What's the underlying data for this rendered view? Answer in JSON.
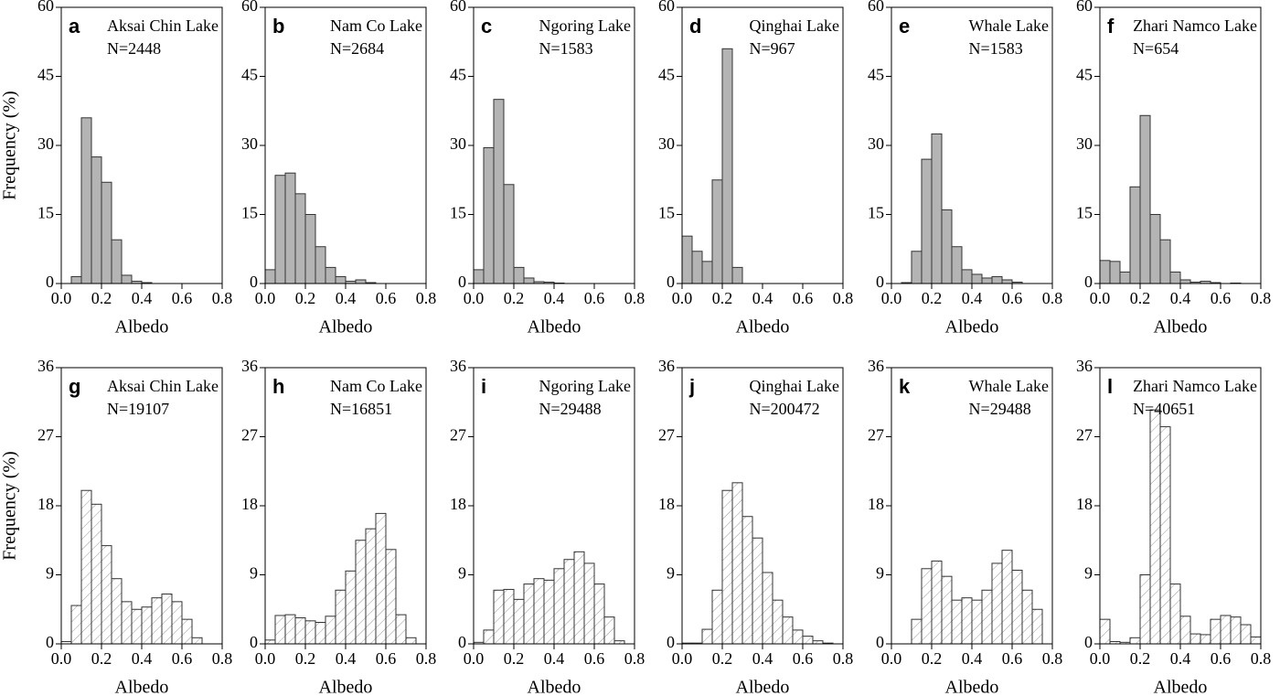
{
  "chart_data": [
    {
      "type": "histogram",
      "panel_label": "a",
      "title": "Aksai Chin Lake",
      "annotation": "N=2448",
      "xlabel": "Albedo",
      "ylabel": "Frequency (%)",
      "bins": [
        0,
        0.05,
        0.1,
        0.15,
        0.2,
        0.25,
        0.3,
        0.35,
        0.4,
        0.45,
        0.5,
        0.55,
        0.6,
        0.65,
        0.7,
        0.75,
        0.8
      ],
      "values": [
        0,
        1.5,
        36,
        27.5,
        22,
        9.5,
        1.8,
        0.5,
        0.2,
        0,
        0,
        0,
        0,
        0,
        0,
        0
      ],
      "color": "#b4b4b4",
      "hatch": false,
      "xlim": [
        0,
        0.8
      ],
      "ylim": [
        0,
        60
      ],
      "xticks": [
        {
          "value": 0,
          "label": "0.0"
        },
        0.2,
        0.4,
        0.6,
        0.8
      ],
      "yticks": [
        0,
        15,
        30,
        45,
        60
      ]
    },
    {
      "type": "histogram",
      "panel_label": "b",
      "title": "Nam Co Lake",
      "annotation": "N=2684",
      "xlabel": "Albedo",
      "bins": [
        0,
        0.05,
        0.1,
        0.15,
        0.2,
        0.25,
        0.3,
        0.35,
        0.4,
        0.45,
        0.5,
        0.55,
        0.6,
        0.65,
        0.7,
        0.75,
        0.8
      ],
      "values": [
        3,
        23.5,
        24,
        19.5,
        15,
        8,
        3.5,
        1.5,
        0.5,
        0.8,
        0.2,
        0,
        0,
        0,
        0,
        0
      ],
      "color": "#b4b4b4",
      "hatch": false,
      "xlim": [
        0,
        0.8
      ],
      "ylim": [
        0,
        60
      ],
      "xticks": [
        {
          "value": 0,
          "label": "0.0"
        },
        0.2,
        0.4,
        0.6,
        0.8
      ],
      "yticks": [
        0,
        15,
        30,
        45,
        60
      ]
    },
    {
      "type": "histogram",
      "panel_label": "c",
      "title": "Ngoring Lake",
      "annotation": "N=1583",
      "xlabel": "Albedo",
      "bins": [
        0,
        0.05,
        0.1,
        0.15,
        0.2,
        0.25,
        0.3,
        0.35,
        0.4,
        0.45,
        0.5,
        0.55,
        0.6,
        0.65,
        0.7,
        0.75,
        0.8
      ],
      "values": [
        3,
        29.5,
        40,
        21.5,
        3.5,
        1.2,
        0.4,
        0.3,
        0.1,
        0,
        0,
        0,
        0,
        0,
        0,
        0
      ],
      "color": "#b4b4b4",
      "hatch": false,
      "xlim": [
        0,
        0.8
      ],
      "ylim": [
        0,
        60
      ],
      "xticks": [
        {
          "value": 0,
          "label": "0.0"
        },
        0.2,
        0.4,
        0.6,
        0.8
      ],
      "yticks": [
        0,
        15,
        30,
        45,
        60
      ]
    },
    {
      "type": "histogram",
      "panel_label": "d",
      "title": "Qinghai Lake",
      "annotation": "N=967",
      "xlabel": "Albedo",
      "bins": [
        0,
        0.05,
        0.1,
        0.15,
        0.2,
        0.25,
        0.3,
        0.35,
        0.4,
        0.45,
        0.5,
        0.55,
        0.6,
        0.65,
        0.7,
        0.75,
        0.8
      ],
      "values": [
        10.3,
        7,
        4.8,
        22.5,
        51,
        3.5,
        0,
        0,
        0,
        0,
        0,
        0,
        0,
        0,
        0,
        0
      ],
      "color": "#b4b4b4",
      "hatch": false,
      "xlim": [
        0,
        0.8
      ],
      "ylim": [
        0,
        60
      ],
      "xticks": [
        {
          "value": 0,
          "label": "0.0"
        },
        0.2,
        0.4,
        0.6,
        0.8
      ],
      "yticks": [
        0,
        15,
        30,
        45,
        60
      ]
    },
    {
      "type": "histogram",
      "panel_label": "e",
      "title": "Whale Lake",
      "annotation": "N=1583",
      "xlabel": "Albedo",
      "bins": [
        0,
        0.05,
        0.1,
        0.15,
        0.2,
        0.25,
        0.3,
        0.35,
        0.4,
        0.45,
        0.5,
        0.55,
        0.6,
        0.65,
        0.7,
        0.75,
        0.8
      ],
      "values": [
        0,
        0.2,
        7,
        27,
        32.5,
        16,
        8,
        3,
        2,
        1.2,
        1.5,
        0.8,
        0.3,
        0,
        0,
        0
      ],
      "color": "#b4b4b4",
      "hatch": false,
      "xlim": [
        0,
        0.8
      ],
      "ylim": [
        0,
        60
      ],
      "xticks": [
        {
          "value": 0,
          "label": "0.0"
        },
        0.2,
        0.4,
        0.6,
        0.8
      ],
      "yticks": [
        0,
        15,
        30,
        45,
        60
      ]
    },
    {
      "type": "histogram",
      "panel_label": "f",
      "title": "Zhari Namco Lake",
      "annotation": "N=654",
      "xlabel": "Albedo",
      "bins": [
        0,
        0.05,
        0.1,
        0.15,
        0.2,
        0.25,
        0.3,
        0.35,
        0.4,
        0.45,
        0.5,
        0.55,
        0.6,
        0.65,
        0.7,
        0.75,
        0.8
      ],
      "values": [
        5,
        4.8,
        2.5,
        21,
        36.5,
        15,
        9.5,
        2.5,
        0.8,
        0.3,
        0.5,
        0.2,
        0,
        0.1,
        0,
        0
      ],
      "color": "#b4b4b4",
      "hatch": false,
      "xlim": [
        0,
        0.8
      ],
      "ylim": [
        0,
        60
      ],
      "xticks": [
        {
          "value": 0,
          "label": "0.0"
        },
        0.2,
        0.4,
        0.6,
        0.8
      ],
      "yticks": [
        0,
        15,
        30,
        45,
        60
      ]
    },
    {
      "type": "histogram",
      "panel_label": "g",
      "title": "Aksai Chin Lake",
      "annotation": "N=19107",
      "xlabel": "Albedo",
      "ylabel": "Frequency (%)",
      "bins": [
        0,
        0.05,
        0.1,
        0.15,
        0.2,
        0.25,
        0.3,
        0.35,
        0.4,
        0.45,
        0.5,
        0.55,
        0.6,
        0.65,
        0.7,
        0.75,
        0.8
      ],
      "values": [
        0.3,
        5,
        20,
        18.2,
        12.8,
        8.5,
        5.5,
        4.5,
        4.8,
        6,
        6.5,
        5.5,
        3.2,
        0.8,
        0,
        0
      ],
      "color": "#9a9a9a",
      "hatch": true,
      "xlim": [
        0,
        0.8
      ],
      "ylim": [
        0,
        36
      ],
      "xticks": [
        {
          "value": 0,
          "label": "0.0"
        },
        0.2,
        0.4,
        0.6,
        0.8
      ],
      "yticks": [
        0,
        9,
        18,
        27,
        36
      ]
    },
    {
      "type": "histogram",
      "panel_label": "h",
      "title": "Nam Co Lake",
      "annotation": "N=16851",
      "xlabel": "Albedo",
      "bins": [
        0,
        0.05,
        0.1,
        0.15,
        0.2,
        0.25,
        0.3,
        0.35,
        0.4,
        0.45,
        0.5,
        0.55,
        0.6,
        0.65,
        0.7,
        0.75,
        0.8
      ],
      "values": [
        0.5,
        3.7,
        3.8,
        3.4,
        3,
        2.8,
        3.6,
        7,
        9.5,
        13.5,
        15,
        17,
        12.3,
        3.8,
        0.8,
        0
      ],
      "color": "#9a9a9a",
      "hatch": true,
      "xlim": [
        0,
        0.8
      ],
      "ylim": [
        0,
        36
      ],
      "xticks": [
        {
          "value": 0,
          "label": "0.0"
        },
        0.2,
        0.4,
        0.6,
        0.8
      ],
      "yticks": [
        0,
        9,
        18,
        27,
        36
      ]
    },
    {
      "type": "histogram",
      "panel_label": "i",
      "title": "Ngoring Lake",
      "annotation": "N=29488",
      "xlabel": "Albedo",
      "bins": [
        0,
        0.05,
        0.1,
        0.15,
        0.2,
        0.25,
        0.3,
        0.35,
        0.4,
        0.45,
        0.5,
        0.55,
        0.6,
        0.65,
        0.7,
        0.75,
        0.8
      ],
      "values": [
        0.2,
        1.8,
        7,
        7.1,
        5.8,
        7.8,
        8.5,
        8.3,
        9.8,
        11,
        12,
        10.5,
        7.8,
        3.5,
        0.4,
        0
      ],
      "color": "#9a9a9a",
      "hatch": true,
      "xlim": [
        0,
        0.8
      ],
      "ylim": [
        0,
        36
      ],
      "xticks": [
        {
          "value": 0,
          "label": "0.0"
        },
        0.2,
        0.4,
        0.6,
        0.8
      ],
      "yticks": [
        0,
        9,
        18,
        27,
        36
      ]
    },
    {
      "type": "histogram",
      "panel_label": "j",
      "title": "Qinghai Lake",
      "annotation": "N=200472",
      "xlabel": "Albedo",
      "bins": [
        0,
        0.05,
        0.1,
        0.15,
        0.2,
        0.25,
        0.3,
        0.35,
        0.4,
        0.45,
        0.5,
        0.55,
        0.6,
        0.65,
        0.7,
        0.75,
        0.8
      ],
      "values": [
        0.1,
        0.1,
        1.9,
        7,
        20,
        21,
        16.6,
        13.8,
        9.3,
        5.7,
        3.5,
        1.8,
        1,
        0.4,
        0.1,
        0
      ],
      "color": "#9a9a9a",
      "hatch": true,
      "xlim": [
        0,
        0.8
      ],
      "ylim": [
        0,
        36
      ],
      "xticks": [
        {
          "value": 0,
          "label": "0.0"
        },
        0.2,
        0.4,
        0.6,
        0.8
      ],
      "yticks": [
        0,
        9,
        18,
        27,
        36
      ]
    },
    {
      "type": "histogram",
      "panel_label": "k",
      "title": "Whale Lake",
      "annotation": "N=29488",
      "xlabel": "Albedo",
      "bins": [
        0,
        0.05,
        0.1,
        0.15,
        0.2,
        0.25,
        0.3,
        0.35,
        0.4,
        0.45,
        0.5,
        0.55,
        0.6,
        0.65,
        0.7,
        0.75,
        0.8
      ],
      "values": [
        0,
        0,
        3.2,
        9.8,
        10.8,
        8.8,
        5.7,
        6,
        5.7,
        7,
        10.5,
        12.2,
        9.6,
        7,
        4.5,
        0
      ],
      "color": "#9a9a9a",
      "hatch": true,
      "xlim": [
        0,
        0.8
      ],
      "ylim": [
        0,
        36
      ],
      "xticks": [
        {
          "value": 0,
          "label": "0.0"
        },
        0.2,
        0.4,
        0.6,
        0.8
      ],
      "yticks": [
        0,
        9,
        18,
        27,
        36
      ]
    },
    {
      "type": "histogram",
      "panel_label": "l",
      "title": "Zhari Namco Lake",
      "annotation": "N=40651",
      "xlabel": "Albedo",
      "bins": [
        0,
        0.05,
        0.1,
        0.15,
        0.2,
        0.25,
        0.3,
        0.35,
        0.4,
        0.45,
        0.5,
        0.55,
        0.6,
        0.65,
        0.7,
        0.75,
        0.8
      ],
      "values": [
        3.2,
        0.3,
        0.2,
        0.8,
        9,
        30.5,
        28.3,
        7.8,
        3.6,
        1.3,
        1.2,
        3.2,
        3.7,
        3.5,
        2.5,
        0.9
      ],
      "color": "#9a9a9a",
      "hatch": true,
      "xlim": [
        0,
        0.8
      ],
      "ylim": [
        0,
        36
      ],
      "xticks": [
        {
          "value": 0,
          "label": "0.0"
        },
        0.2,
        0.4,
        0.6,
        0.8
      ],
      "yticks": [
        0,
        9,
        18,
        27,
        36
      ]
    }
  ]
}
